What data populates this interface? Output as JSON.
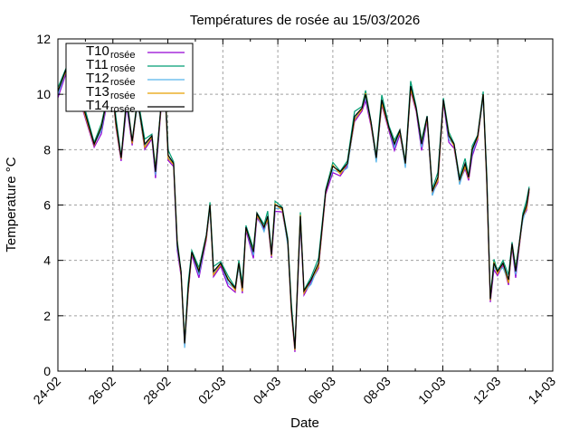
{
  "chart_data": {
    "type": "line",
    "title": "Températures de rosée au 15/03/2026",
    "xlabel": "Date",
    "ylabel": "Temperature °C",
    "xlim_days": [
      0,
      18
    ],
    "ylim": [
      0,
      12
    ],
    "grid": true,
    "legend_placement": "top-left",
    "x_tick_labels": [
      "24-02",
      "26-02",
      "28-02",
      "02-03",
      "04-03",
      "06-03",
      "08-03",
      "10-03",
      "12-03",
      "14-03"
    ],
    "y_ticks": [
      0,
      2,
      4,
      6,
      8,
      10,
      12
    ],
    "x_days": [
      0,
      0.33,
      0.59,
      0.79,
      1.32,
      1.58,
      1.78,
      1.91,
      2.11,
      2.3,
      2.5,
      2.7,
      2.9,
      3.16,
      3.42,
      3.55,
      3.75,
      3.88,
      4.01,
      4.21,
      4.34,
      4.48,
      4.61,
      4.74,
      4.87,
      5.13,
      5.4,
      5.53,
      5.66,
      5.92,
      6.19,
      6.45,
      6.58,
      6.71,
      6.84,
      7.11,
      7.24,
      7.5,
      7.63,
      7.77,
      7.9,
      8.16,
      8.36,
      8.49,
      8.62,
      8.82,
      8.95,
      9.21,
      9.48,
      9.74,
      10.0,
      10.27,
      10.53,
      10.79,
      11.06,
      11.19,
      11.39,
      11.58,
      11.78,
      12.04,
      12.24,
      12.44,
      12.64,
      12.83,
      13.03,
      13.23,
      13.43,
      13.62,
      13.82,
      14.02,
      14.22,
      14.41,
      14.61,
      14.81,
      14.94,
      15.07,
      15.27,
      15.47,
      15.6,
      15.73,
      15.86,
      15.99,
      16.19,
      16.39,
      16.52,
      16.65,
      16.78,
      16.91,
      17.05,
      17.14
    ],
    "base_values": [
      10.1,
      11.0,
      9.8,
      10.0,
      8.2,
      8.8,
      9.8,
      11.0,
      9.0,
      7.7,
      9.8,
      8.3,
      9.8,
      8.2,
      8.5,
      7.2,
      9.6,
      10.6,
      7.8,
      7.5,
      4.6,
      3.6,
      1.0,
      3.0,
      4.3,
      3.6,
      4.9,
      6.0,
      3.6,
      3.9,
      3.3,
      3.0,
      3.9,
      3.0,
      5.2,
      4.3,
      5.7,
      5.2,
      5.6,
      4.2,
      6.0,
      5.9,
      4.7,
      2.3,
      0.8,
      5.6,
      2.9,
      3.3,
      3.9,
      6.5,
      7.4,
      7.2,
      7.5,
      9.2,
      9.5,
      10.0,
      9.0,
      7.7,
      9.8,
      8.8,
      8.2,
      8.7,
      7.5,
      10.3,
      9.5,
      8.2,
      9.2,
      6.5,
      7.0,
      9.8,
      8.5,
      8.2,
      6.9,
      7.5,
      7.0,
      8.0,
      8.5,
      10.0,
      6.9,
      2.6,
      3.9,
      3.6,
      3.9,
      3.3,
      4.6,
      3.6,
      4.6,
      5.6,
      6.0,
      6.6
    ],
    "series": [
      {
        "name": "T10",
        "sub": "rosée",
        "color": "#9400d3",
        "offset": -0.15
      },
      {
        "name": "T11",
        "sub": "rosée",
        "color": "#009e73",
        "offset": 0.1
      },
      {
        "name": "T12",
        "sub": "rosée",
        "color": "#56b4e9",
        "offset": -0.08
      },
      {
        "name": "T13",
        "sub": "rosée",
        "color": "#e69f00",
        "offset": -0.04
      },
      {
        "name": "T14",
        "sub": "rosée",
        "color": "#000000",
        "offset": 0
      }
    ]
  }
}
